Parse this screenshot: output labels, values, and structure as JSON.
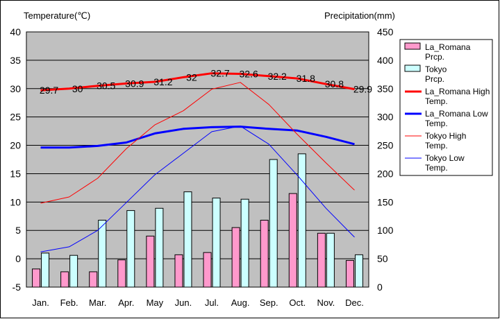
{
  "chart_data": {
    "type": "bar",
    "categories": [
      "Jan.",
      "Feb.",
      "Mar.",
      "Apr.",
      "May",
      "Jun.",
      "Jul.",
      "Aug.",
      "Sep.",
      "Oct.",
      "Nov.",
      "Dec."
    ],
    "y_left": {
      "label": "Temperature(℃)",
      "range": [
        -5,
        40
      ],
      "ticks": [
        -5,
        0,
        5,
        10,
        15,
        20,
        25,
        30,
        35,
        40
      ]
    },
    "y_right": {
      "label": "Precipitation(mm)",
      "range": [
        0,
        450
      ],
      "ticks": [
        0,
        50,
        100,
        150,
        200,
        250,
        300,
        350,
        400,
        450
      ]
    },
    "grid": true,
    "legend_position": "right",
    "bar_series": [
      {
        "name": "La_Romana Prcp.",
        "axis": "right",
        "color": "#ff99cc",
        "values": [
          32,
          27,
          27,
          48,
          90,
          57,
          61,
          105,
          118,
          165,
          95,
          47
        ]
      },
      {
        "name": "Tokyo Prcp.",
        "axis": "right",
        "color": "#ccffff",
        "values": [
          60,
          56,
          118,
          135,
          139,
          168,
          157,
          155,
          225,
          235,
          95,
          57
        ]
      }
    ],
    "line_series": [
      {
        "name": "La_Romana High Temp.",
        "axis": "left",
        "color": "#ff0000",
        "width": 3,
        "values": [
          29.7,
          30.0,
          30.5,
          30.9,
          31.2,
          32.0,
          32.7,
          32.6,
          32.2,
          31.8,
          30.8,
          29.9
        ],
        "labels": [
          "29.7",
          "30",
          "30.5",
          "30.9",
          "31.2",
          "32",
          "32.7",
          "32.6",
          "32.2",
          "31.8",
          "30.8",
          "29.9"
        ]
      },
      {
        "name": "La_Romana Low Temp.",
        "axis": "left",
        "color": "#0000ff",
        "width": 3,
        "values": [
          19.6,
          19.6,
          19.9,
          20.5,
          22.1,
          22.9,
          23.2,
          23.3,
          22.9,
          22.6,
          21.5,
          20.2
        ]
      },
      {
        "name": "Tokyo High Temp.",
        "axis": "left",
        "color": "#ff0000",
        "width": 1,
        "values": [
          9.8,
          10.9,
          14.2,
          19.4,
          23.6,
          26.1,
          29.9,
          31.1,
          27.2,
          21.9,
          16.9,
          12.1
        ]
      },
      {
        "name": "Tokyo Low Temp.",
        "axis": "left",
        "color": "#0000ff",
        "width": 1,
        "values": [
          1.2,
          2.1,
          5.0,
          9.9,
          14.8,
          18.6,
          22.4,
          23.4,
          20.2,
          14.7,
          8.9,
          3.8
        ]
      }
    ],
    "legend_entries": [
      {
        "kind": "bar",
        "label": "La_Romana Prcp.",
        "color": "#ff99cc"
      },
      {
        "kind": "bar",
        "label": "Tokyo Prcp.",
        "color": "#ccffff"
      },
      {
        "kind": "line",
        "label": "La_Romana High Temp.",
        "color": "#ff0000",
        "width": 3
      },
      {
        "kind": "line",
        "label": "La_Romana Low Temp.",
        "color": "#0000ff",
        "width": 3
      },
      {
        "kind": "line",
        "label": "Tokyo High Temp.",
        "color": "#ff0000",
        "width": 1
      },
      {
        "kind": "line",
        "label": "Tokyo Low Temp.",
        "color": "#0000ff",
        "width": 1
      }
    ],
    "plot_background": "#c0c0c0"
  }
}
